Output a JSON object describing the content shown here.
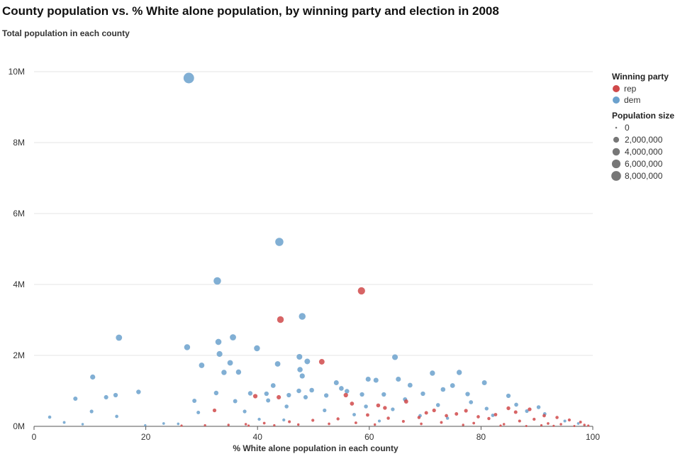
{
  "chart_data": {
    "type": "scatter",
    "title": "County population vs. % White alone population, by winning party and election in 2008",
    "ylabel": "Total population in each county",
    "xlabel": "% White alone population in each county",
    "xlim": [
      0,
      100
    ],
    "ylim": [
      0,
      10000000
    ],
    "x_ticks": [
      0,
      20,
      40,
      60,
      80,
      100
    ],
    "y_ticks": [
      {
        "value": 0,
        "label": "0M"
      },
      {
        "value": 2000000,
        "label": "2M"
      },
      {
        "value": 4000000,
        "label": "4M"
      },
      {
        "value": 6000000,
        "label": "6M"
      },
      {
        "value": 8000000,
        "label": "8M"
      },
      {
        "value": 10000000,
        "label": "10M"
      }
    ],
    "grid": "horizontal",
    "colors": {
      "rep": "#d0494a",
      "dem": "#6ba1cd"
    },
    "legend": {
      "placement": "right",
      "color_title": "Winning party",
      "color_items": [
        {
          "key": "rep",
          "label": "rep"
        },
        {
          "key": "dem",
          "label": "dem"
        }
      ],
      "size_title": "Population size",
      "size_items": [
        {
          "value": 0,
          "label": "0"
        },
        {
          "value": 2000000,
          "label": "2,000,000"
        },
        {
          "value": 4000000,
          "label": "4,000,000"
        },
        {
          "value": 6000000,
          "label": "6,000,000"
        },
        {
          "value": 8000000,
          "label": "8,000,000"
        }
      ]
    },
    "series": [
      {
        "name": "dem",
        "points": [
          [
            27.7,
            9820000
          ],
          [
            43.9,
            5200000
          ],
          [
            32.8,
            4100000
          ],
          [
            48.0,
            3100000
          ],
          [
            15.2,
            2500000
          ],
          [
            35.6,
            2510000
          ],
          [
            33.0,
            2380000
          ],
          [
            27.4,
            2230000
          ],
          [
            39.9,
            2200000
          ],
          [
            33.2,
            2040000
          ],
          [
            47.5,
            1960000
          ],
          [
            64.6,
            1950000
          ],
          [
            48.9,
            1830000
          ],
          [
            35.1,
            1790000
          ],
          [
            43.6,
            1760000
          ],
          [
            30.0,
            1720000
          ],
          [
            47.6,
            1600000
          ],
          [
            76.1,
            1520000
          ],
          [
            34.0,
            1520000
          ],
          [
            36.6,
            1530000
          ],
          [
            71.3,
            1500000
          ],
          [
            48.0,
            1420000
          ],
          [
            10.5,
            1390000
          ],
          [
            59.8,
            1330000
          ],
          [
            61.2,
            1300000
          ],
          [
            65.2,
            1330000
          ],
          [
            80.6,
            1230000
          ],
          [
            54.1,
            1230000
          ],
          [
            42.8,
            1150000
          ],
          [
            67.3,
            1160000
          ],
          [
            74.9,
            1150000
          ],
          [
            55.0,
            1070000
          ],
          [
            73.2,
            1040000
          ],
          [
            49.7,
            1020000
          ],
          [
            47.4,
            1000000
          ],
          [
            56.0,
            990000
          ],
          [
            18.7,
            970000
          ],
          [
            38.7,
            930000
          ],
          [
            41.6,
            920000
          ],
          [
            69.6,
            920000
          ],
          [
            58.7,
            900000
          ],
          [
            62.6,
            900000
          ],
          [
            77.6,
            910000
          ],
          [
            14.6,
            880000
          ],
          [
            32.6,
            940000
          ],
          [
            45.6,
            880000
          ],
          [
            84.9,
            860000
          ],
          [
            52.3,
            870000
          ],
          [
            48.6,
            820000
          ],
          [
            12.9,
            820000
          ],
          [
            7.4,
            780000
          ],
          [
            36.0,
            710000
          ],
          [
            28.7,
            720000
          ],
          [
            41.9,
            730000
          ],
          [
            45.2,
            560000
          ],
          [
            59.4,
            560000
          ],
          [
            72.3,
            600000
          ],
          [
            81.0,
            500000
          ],
          [
            10.3,
            420000
          ],
          [
            14.8,
            280000
          ],
          [
            2.8,
            260000
          ],
          [
            5.4,
            110000
          ],
          [
            23.2,
            80000
          ],
          [
            29.4,
            390000
          ],
          [
            37.7,
            420000
          ],
          [
            52.0,
            450000
          ],
          [
            64.2,
            480000
          ],
          [
            88.2,
            430000
          ],
          [
            91.4,
            350000
          ],
          [
            69.1,
            300000
          ],
          [
            57.3,
            330000
          ],
          [
            40.3,
            200000
          ],
          [
            8.7,
            60000
          ],
          [
            19.9,
            30000
          ],
          [
            25.8,
            70000
          ],
          [
            66.4,
            760000
          ],
          [
            78.2,
            680000
          ],
          [
            86.3,
            610000
          ],
          [
            90.3,
            540000
          ],
          [
            95.0,
            150000
          ],
          [
            97.4,
            80000
          ],
          [
            82.1,
            310000
          ],
          [
            74.0,
            230000
          ],
          [
            44.7,
            180000
          ],
          [
            61.8,
            150000
          ]
        ]
      },
      {
        "name": "rep",
        "points": [
          [
            58.6,
            3820000
          ],
          [
            44.1,
            3010000
          ],
          [
            51.5,
            1820000
          ],
          [
            39.6,
            850000
          ],
          [
            43.8,
            820000
          ],
          [
            55.8,
            880000
          ],
          [
            32.3,
            450000
          ],
          [
            56.9,
            640000
          ],
          [
            61.6,
            590000
          ],
          [
            66.6,
            700000
          ],
          [
            71.6,
            450000
          ],
          [
            77.3,
            440000
          ],
          [
            84.9,
            510000
          ],
          [
            88.7,
            480000
          ],
          [
            86.2,
            400000
          ],
          [
            91.3,
            300000
          ],
          [
            93.6,
            250000
          ],
          [
            95.8,
            180000
          ],
          [
            97.8,
            120000
          ],
          [
            92.0,
            80000
          ],
          [
            89.5,
            200000
          ],
          [
            82.6,
            330000
          ],
          [
            79.5,
            270000
          ],
          [
            73.8,
            300000
          ],
          [
            68.9,
            250000
          ],
          [
            63.4,
            230000
          ],
          [
            59.7,
            320000
          ],
          [
            54.4,
            210000
          ],
          [
            49.9,
            170000
          ],
          [
            45.7,
            130000
          ],
          [
            41.2,
            90000
          ],
          [
            37.9,
            60000
          ],
          [
            34.8,
            40000
          ],
          [
            30.6,
            30000
          ],
          [
            26.4,
            20000
          ],
          [
            62.8,
            520000
          ],
          [
            70.2,
            380000
          ],
          [
            75.6,
            350000
          ],
          [
            81.4,
            220000
          ],
          [
            86.9,
            150000
          ],
          [
            94.3,
            60000
          ],
          [
            98.5,
            40000
          ],
          [
            99.2,
            20000
          ],
          [
            96.7,
            10000
          ],
          [
            90.8,
            30000
          ],
          [
            84.1,
            60000
          ],
          [
            78.7,
            90000
          ],
          [
            72.9,
            110000
          ],
          [
            66.1,
            140000
          ],
          [
            57.6,
            100000
          ],
          [
            52.8,
            70000
          ],
          [
            47.3,
            50000
          ],
          [
            43.0,
            30000
          ],
          [
            38.4,
            20000
          ],
          [
            61.0,
            50000
          ],
          [
            69.3,
            70000
          ],
          [
            76.8,
            40000
          ],
          [
            83.5,
            20000
          ],
          [
            88.1,
            10000
          ],
          [
            93.0,
            15000
          ]
        ]
      }
    ]
  }
}
